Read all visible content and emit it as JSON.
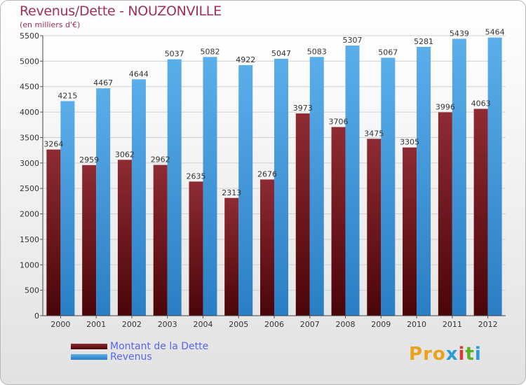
{
  "title": "Revenus/Dette - NOUZONVILLE",
  "subtitle": "(en milliers d'€)",
  "colors": {
    "dette": "#6e1418",
    "revenus": "#3f9ad8",
    "title": "#a0305a",
    "legend_text": "#5566ee"
  },
  "legend": [
    "Montant de la Dette",
    "Revenus"
  ],
  "logo": {
    "text": "Proxiti",
    "colors": [
      "#e8a21c",
      "#e8a21c",
      "#e8a21c",
      "#2a9bd8",
      "#d83a3a",
      "#5ab02a",
      "#2a9bd8"
    ]
  },
  "chart_data": {
    "type": "bar",
    "title": "Revenus/Dette - NOUZONVILLE",
    "subtitle": "(en milliers d'€)",
    "categories": [
      "2000",
      "2001",
      "2002",
      "2003",
      "2004",
      "2005",
      "2006",
      "2007",
      "2008",
      "2009",
      "2010",
      "2011",
      "2012"
    ],
    "series": [
      {
        "name": "Montant de la Dette",
        "values": [
          3264,
          2959,
          3062,
          2962,
          2635,
          2313,
          2676,
          3973,
          3706,
          3475,
          3305,
          3996,
          4063
        ],
        "labels": [
          "3264",
          "2959",
          "3062",
          "2962",
          "2635",
          "2313",
          "2676",
          "3973",
          "3706",
          "3475",
          "3305",
          "3996",
          "4063"
        ]
      },
      {
        "name": "Revenus",
        "values": [
          4215,
          4467,
          4644,
          5037,
          5082,
          4922,
          5047,
          5083,
          5307,
          5067,
          5281,
          5439,
          5464
        ],
        "labels": [
          "4215",
          "4467",
          "4644",
          "5037",
          "5082",
          "4922",
          "5047",
          "5083",
          "5307",
          "5067",
          "5281",
          "5439",
          "5464"
        ]
      }
    ],
    "yticks": [
      "0",
      "500",
      "1000",
      "1500",
      "2000",
      "2500",
      "3000",
      "3500",
      "4000",
      "4500",
      "5000",
      "5500"
    ],
    "ylim": [
      0,
      5500
    ],
    "grid": true,
    "legend_position": "bottom-left"
  }
}
